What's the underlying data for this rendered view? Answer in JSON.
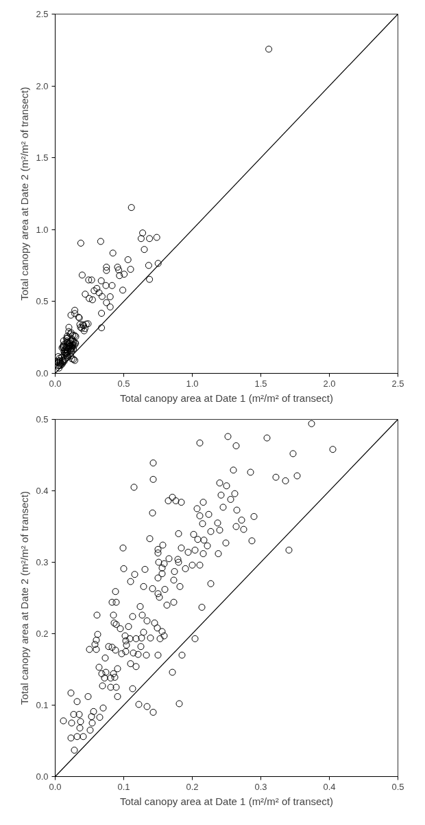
{
  "chart_data": [
    {
      "type": "scatter",
      "xlabel": "Total canopy area at Date 1 (m²/m² of transect)",
      "ylabel": "Total canopy area at Date 2 (m²/m² of transect)",
      "grid": false,
      "xlim": [
        0,
        2.5
      ],
      "ylim": [
        0,
        2.5
      ],
      "xticks": [
        {
          "value": 0,
          "label": "0.0"
        },
        {
          "value": 0.5,
          "label": "0.5"
        },
        {
          "value": 1,
          "label": "1.0"
        },
        {
          "value": 1.5,
          "label": "1.5"
        },
        {
          "value": 2,
          "label": "2.0"
        },
        {
          "value": 2.5,
          "label": "2.5"
        }
      ],
      "yticks": [
        {
          "value": 0,
          "label": "0.0"
        },
        {
          "value": 0.5,
          "label": "0.5"
        },
        {
          "value": 1,
          "label": "1.0"
        },
        {
          "value": 1.5,
          "label": "1.5"
        },
        {
          "value": 2,
          "label": "2.0"
        },
        {
          "value": 2.5,
          "label": "2.5"
        }
      ],
      "series": [
        {
          "marker": "circle",
          "color": "#000000",
          "x": [
            1.558,
            0.556,
            0.638,
            0.627,
            0.688,
            0.741,
            0.65,
            0.187,
            0.332,
            0.421,
            0.531,
            0.374,
            0.374,
            0.455,
            0.463,
            0.55,
            0.682,
            0.751,
            0.469,
            0.503,
            0.197,
            0.244,
            0.266,
            0.336,
            0.688,
            0.37,
            0.415,
            0.304,
            0.493,
            0.284,
            0.32,
            0.219,
            0.401,
            0.342,
            0.248,
            0.272,
            0.374,
            0.401,
            0.338,
            0.338,
            0.115,
            0.143,
            0.143,
            0.1,
            0.099,
            0.116,
            0.11,
            0.129,
            0.142,
            0.15,
            0.088,
            0.083,
            0.089,
            0.124,
            0.061,
            0.085,
            0.113,
            0.127,
            0.134,
            0.086,
            0.089,
            0.145,
            0.095,
            0.107,
            0.149,
            0.062,
            0.129,
            0.102,
            0.06,
            0.103,
            0.109,
            0.118,
            0.126,
            0.139,
            0.104,
            0.058,
            0.05,
            0.06,
            0.078,
            0.083,
            0.088,
            0.097,
            0.103,
            0.114,
            0.121,
            0.133,
            0.125,
            0.073,
            0.11,
            0.118,
            0.064,
            0.068,
            0.074,
            0.085,
            0.091,
            0.072,
            0.081,
            0.087,
            0.069,
            0.081,
            0.089,
            0.113,
            0.091,
            0.048,
            0.023,
            0.032,
            0.07,
            0.122,
            0.134,
            0.143,
            0.027,
            0.035,
            0.056,
            0.053,
            0.065,
            0.012,
            0.024,
            0.037,
            0.054,
            0.036,
            0.051,
            0.032,
            0.023,
            0.041,
            0.028,
            0.171,
            0.176,
            0.18,
            0.202,
            0.185,
            0.194,
            0.211,
            0.24,
            0.208,
            0.217,
            0.227
          ],
          "values": [
            2.256,
            1.154,
            0.977,
            0.938,
            0.938,
            0.946,
            0.862,
            0.906,
            0.918,
            0.837,
            0.791,
            0.739,
            0.716,
            0.739,
            0.72,
            0.724,
            0.751,
            0.765,
            0.68,
            0.69,
            0.684,
            0.65,
            0.65,
            0.644,
            0.654,
            0.611,
            0.611,
            0.591,
            0.579,
            0.575,
            0.561,
            0.551,
            0.533,
            0.535,
            0.521,
            0.512,
            0.492,
            0.462,
            0.418,
            0.317,
            0.405,
            0.439,
            0.416,
            0.32,
            0.291,
            0.283,
            0.273,
            0.266,
            0.263,
            0.256,
            0.259,
            0.244,
            0.244,
            0.238,
            0.226,
            0.226,
            0.224,
            0.226,
            0.218,
            0.215,
            0.213,
            0.215,
            0.207,
            0.21,
            0.208,
            0.199,
            0.202,
            0.197,
            0.191,
            0.19,
            0.193,
            0.193,
            0.194,
            0.194,
            0.184,
            0.185,
            0.178,
            0.178,
            0.182,
            0.181,
            0.177,
            0.172,
            0.175,
            0.173,
            0.171,
            0.17,
            0.182,
            0.166,
            0.158,
            0.154,
            0.153,
            0.144,
            0.146,
            0.144,
            0.151,
            0.138,
            0.138,
            0.139,
            0.127,
            0.125,
            0.125,
            0.123,
            0.112,
            0.112,
            0.117,
            0.105,
            0.096,
            0.101,
            0.098,
            0.09,
            0.087,
            0.087,
            0.091,
            0.084,
            0.083,
            0.078,
            0.075,
            0.077,
            0.075,
            0.068,
            0.065,
            0.056,
            0.054,
            0.056,
            0.037,
            0.391,
            0.386,
            0.34,
            0.339,
            0.32,
            0.314,
            0.296,
            0.345,
            0.332,
            0.312,
            0.343
          ]
        },
        {
          "type": "line",
          "color": "#000000",
          "x": [
            0,
            2.5
          ],
          "values": [
            0,
            2.5
          ]
        }
      ]
    },
    {
      "type": "scatter",
      "xlabel": "Total canopy area at Date 1 (m²/m² of transect)",
      "ylabel": "Total canopy area at Date 2 (m²/m² of transect)",
      "grid": false,
      "xlim": [
        0,
        0.5
      ],
      "ylim": [
        0,
        0.5
      ],
      "xticks": [
        {
          "value": 0,
          "label": "0.0"
        },
        0.1,
        0.2,
        0.3,
        0.4,
        0.5
      ],
      "yticks": [
        {
          "value": 0,
          "label": "0.0"
        },
        0.1,
        0.2,
        0.3,
        0.4,
        0.5
      ],
      "series": [
        {
          "marker": "circle",
          "color": "#000000",
          "x": [
            0.374,
            0.252,
            0.309,
            0.211,
            0.264,
            0.405,
            0.347,
            0.143,
            0.143,
            0.26,
            0.285,
            0.322,
            0.336,
            0.353,
            0.115,
            0.24,
            0.25,
            0.262,
            0.242,
            0.256,
            0.245,
            0.265,
            0.171,
            0.165,
            0.176,
            0.184,
            0.216,
            0.207,
            0.211,
            0.224,
            0.29,
            0.142,
            0.215,
            0.237,
            0.272,
            0.264,
            0.275,
            0.24,
            0.227,
            0.18,
            0.202,
            0.138,
            0.208,
            0.217,
            0.249,
            0.287,
            0.341,
            0.099,
            0.15,
            0.157,
            0.15,
            0.184,
            0.194,
            0.204,
            0.216,
            0.222,
            0.238,
            0.166,
            0.179,
            0.18,
            0.151,
            0.159,
            0.156,
            0.19,
            0.2,
            0.211,
            0.1,
            0.131,
            0.116,
            0.174,
            0.156,
            0.15,
            0.173,
            0.11,
            0.129,
            0.182,
            0.227,
            0.142,
            0.16,
            0.15,
            0.152,
            0.088,
            0.083,
            0.089,
            0.163,
            0.173,
            0.124,
            0.214,
            0.061,
            0.085,
            0.113,
            0.127,
            0.134,
            0.086,
            0.089,
            0.145,
            0.095,
            0.107,
            0.149,
            0.156,
            0.062,
            0.129,
            0.102,
            0.159,
            0.06,
            0.103,
            0.109,
            0.118,
            0.126,
            0.139,
            0.153,
            0.204,
            0.104,
            0.058,
            0.05,
            0.06,
            0.078,
            0.083,
            0.088,
            0.097,
            0.103,
            0.114,
            0.121,
            0.133,
            0.15,
            0.185,
            0.125,
            0.073,
            0.11,
            0.118,
            0.171,
            0.064,
            0.068,
            0.074,
            0.085,
            0.091,
            0.072,
            0.081,
            0.087,
            0.069,
            0.081,
            0.089,
            0.113,
            0.091,
            0.048,
            0.023,
            0.032,
            0.07,
            0.122,
            0.134,
            0.143,
            0.181,
            0.027,
            0.035,
            0.056,
            0.053,
            0.065,
            0.012,
            0.024,
            0.037,
            0.054,
            0.036,
            0.051,
            0.032,
            0.023,
            0.041,
            0.028
          ],
          "values": [
            0.494,
            0.476,
            0.474,
            0.467,
            0.463,
            0.458,
            0.452,
            0.439,
            0.416,
            0.429,
            0.426,
            0.419,
            0.414,
            0.421,
            0.405,
            0.411,
            0.407,
            0.396,
            0.394,
            0.388,
            0.377,
            0.373,
            0.391,
            0.386,
            0.386,
            0.384,
            0.384,
            0.375,
            0.365,
            0.367,
            0.364,
            0.369,
            0.354,
            0.355,
            0.359,
            0.35,
            0.346,
            0.345,
            0.343,
            0.34,
            0.339,
            0.333,
            0.332,
            0.331,
            0.327,
            0.33,
            0.317,
            0.32,
            0.318,
            0.324,
            0.313,
            0.32,
            0.314,
            0.317,
            0.312,
            0.323,
            0.312,
            0.305,
            0.304,
            0.3,
            0.3,
            0.298,
            0.292,
            0.291,
            0.296,
            0.296,
            0.291,
            0.29,
            0.283,
            0.287,
            0.284,
            0.278,
            0.275,
            0.273,
            0.266,
            0.266,
            0.27,
            0.263,
            0.262,
            0.256,
            0.251,
            0.259,
            0.244,
            0.244,
            0.24,
            0.244,
            0.238,
            0.237,
            0.226,
            0.226,
            0.224,
            0.226,
            0.218,
            0.215,
            0.213,
            0.215,
            0.207,
            0.21,
            0.208,
            0.203,
            0.199,
            0.202,
            0.197,
            0.197,
            0.191,
            0.19,
            0.193,
            0.193,
            0.194,
            0.194,
            0.193,
            0.193,
            0.184,
            0.185,
            0.178,
            0.178,
            0.182,
            0.181,
            0.177,
            0.172,
            0.175,
            0.173,
            0.171,
            0.17,
            0.17,
            0.17,
            0.182,
            0.166,
            0.158,
            0.154,
            0.146,
            0.153,
            0.144,
            0.146,
            0.144,
            0.151,
            0.138,
            0.138,
            0.139,
            0.127,
            0.125,
            0.125,
            0.123,
            0.112,
            0.112,
            0.117,
            0.105,
            0.096,
            0.101,
            0.098,
            0.09,
            0.102,
            0.087,
            0.087,
            0.091,
            0.084,
            0.083,
            0.078,
            0.075,
            0.077,
            0.075,
            0.068,
            0.065,
            0.056,
            0.054,
            0.056,
            0.037
          ]
        },
        {
          "type": "line",
          "color": "#000000",
          "x": [
            0,
            0.5
          ],
          "values": [
            0,
            0.5
          ]
        }
      ]
    }
  ]
}
